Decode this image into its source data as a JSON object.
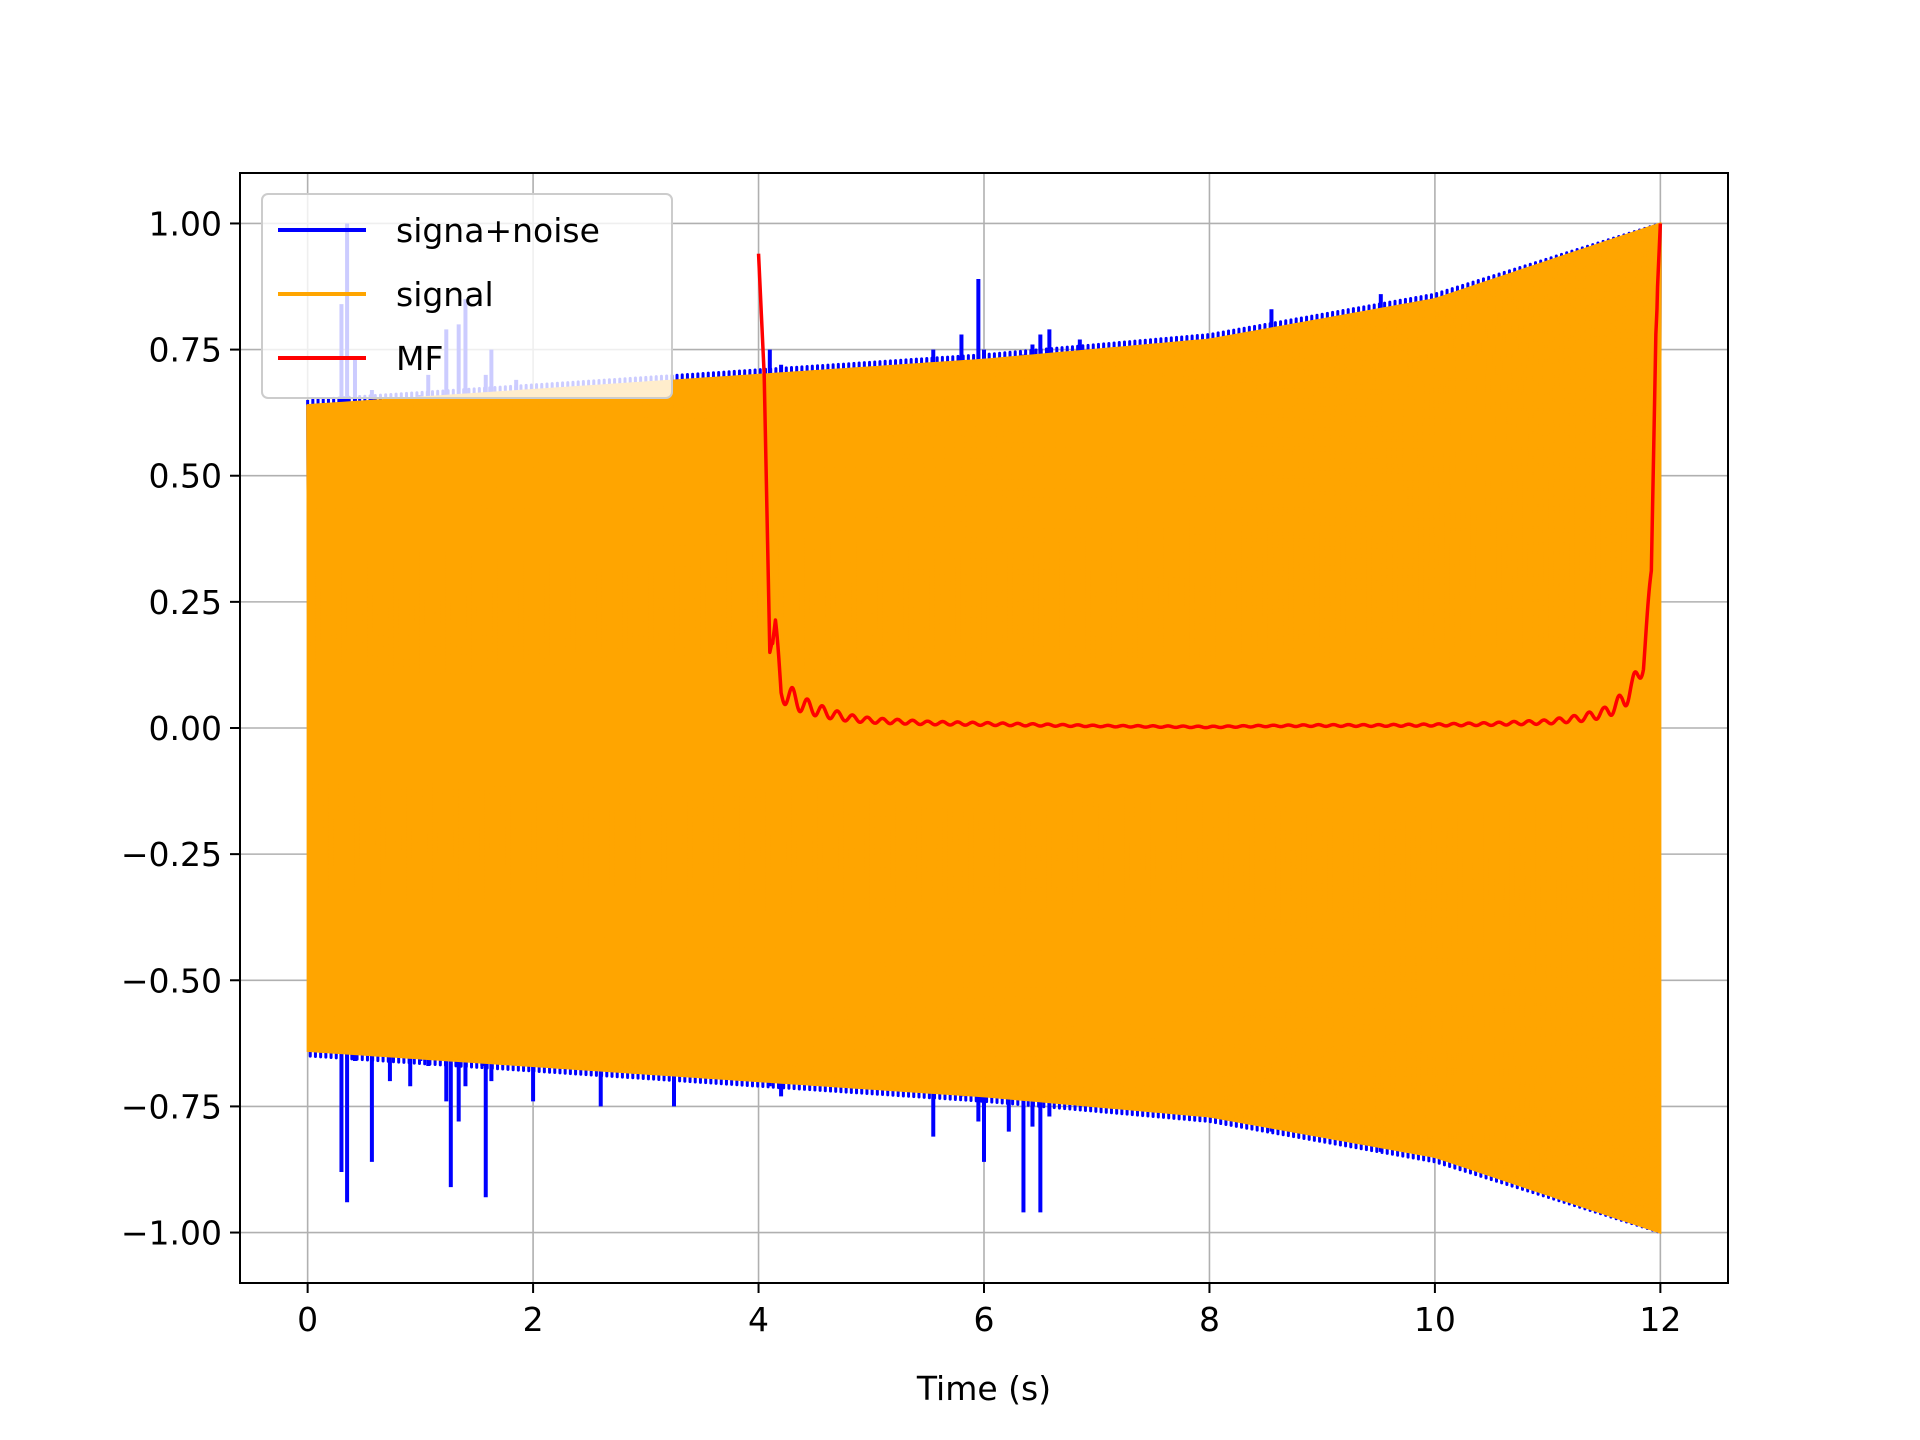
{
  "chart_data": {
    "type": "line",
    "title": "",
    "xlabel": "Time (s)",
    "ylabel": "",
    "xlim": [
      -0.6,
      12.6
    ],
    "ylim": [
      -1.1,
      1.1
    ],
    "xticks": [
      0,
      2,
      4,
      6,
      8,
      10,
      12
    ],
    "xtick_labels": [
      "0",
      "2",
      "4",
      "6",
      "8",
      "10",
      "12"
    ],
    "yticks": [
      1.0,
      0.75,
      0.5,
      0.25,
      0.0,
      -0.25,
      -0.5,
      -0.75,
      -1.0
    ],
    "ytick_labels": [
      "1.00",
      "0.75",
      "0.50",
      "0.25",
      "0.00",
      "−0.25",
      "−0.50",
      "−0.75",
      "−1.00"
    ],
    "grid": true,
    "legend_position": "upper-left",
    "series": [
      {
        "name": "signa+noise",
        "color": "#0000ff",
        "kind": "oscillating",
        "x_range": [
          0,
          12
        ],
        "envelope": {
          "x": [
            0,
            2,
            4,
            6,
            8,
            10,
            12
          ],
          "amp": [
            0.65,
            0.68,
            0.71,
            0.74,
            0.78,
            0.86,
            1.0
          ]
        },
        "spikes": [
          {
            "x": 0.3,
            "min": -0.88,
            "max": 0.84
          },
          {
            "x": 0.35,
            "min": -0.94,
            "max": 1.0
          },
          {
            "x": 0.42,
            "min": -0.66,
            "max": 0.73
          },
          {
            "x": 0.57,
            "min": -0.86,
            "max": 0.67
          },
          {
            "x": 0.73,
            "min": -0.7,
            "max": 0.65
          },
          {
            "x": 0.91,
            "min": -0.71,
            "max": 0.65
          },
          {
            "x": 1.0,
            "min": -0.66,
            "max": 0.66
          },
          {
            "x": 1.07,
            "min": -0.67,
            "max": 0.7
          },
          {
            "x": 1.23,
            "min": -0.74,
            "max": 0.79
          },
          {
            "x": 1.27,
            "min": -0.91,
            "max": 0.66
          },
          {
            "x": 1.34,
            "min": -0.78,
            "max": 0.8
          },
          {
            "x": 1.4,
            "min": -0.71,
            "max": 0.85
          },
          {
            "x": 1.55,
            "min": -0.67,
            "max": 0.66
          },
          {
            "x": 1.58,
            "min": -0.93,
            "max": 0.7
          },
          {
            "x": 1.63,
            "min": -0.7,
            "max": 0.75
          },
          {
            "x": 1.85,
            "min": -0.66,
            "max": 0.69
          },
          {
            "x": 2.0,
            "min": -0.74,
            "max": 0.66
          },
          {
            "x": 2.6,
            "min": -0.75,
            "max": 0.67
          },
          {
            "x": 3.25,
            "min": -0.75,
            "max": 0.68
          },
          {
            "x": 4.1,
            "min": -0.71,
            "max": 0.75
          },
          {
            "x": 4.2,
            "min": -0.73,
            "max": 0.72
          },
          {
            "x": 5.55,
            "min": -0.81,
            "max": 0.75
          },
          {
            "x": 5.8,
            "min": -0.73,
            "max": 0.78
          },
          {
            "x": 5.95,
            "min": -0.78,
            "max": 0.89
          },
          {
            "x": 6.0,
            "min": -0.86,
            "max": 0.75
          },
          {
            "x": 6.22,
            "min": -0.8,
            "max": 0.72
          },
          {
            "x": 6.35,
            "min": -0.96,
            "max": 0.74
          },
          {
            "x": 6.43,
            "min": -0.79,
            "max": 0.76
          },
          {
            "x": 6.5,
            "min": -0.96,
            "max": 0.78
          },
          {
            "x": 6.58,
            "min": -0.77,
            "max": 0.79
          },
          {
            "x": 6.85,
            "min": -0.74,
            "max": 0.77
          },
          {
            "x": 8.55,
            "min": -0.8,
            "max": 0.83
          },
          {
            "x": 9.52,
            "min": -0.84,
            "max": 0.86
          }
        ]
      },
      {
        "name": "signal",
        "color": "#ffa500",
        "kind": "oscillating",
        "x_range": [
          0,
          12
        ],
        "envelope": {
          "x": [
            0,
            2,
            4,
            6,
            8,
            10,
            12
          ],
          "amp": [
            0.64,
            0.67,
            0.7,
            0.73,
            0.77,
            0.85,
            1.0
          ]
        }
      },
      {
        "name": "MF",
        "color": "#ff0000",
        "kind": "line",
        "x": [
          4.0,
          4.05,
          4.1,
          4.15,
          4.2,
          4.3,
          4.4,
          4.6,
          4.8,
          5.0,
          5.5,
          6.0,
          6.5,
          7.0,
          7.5,
          8.0,
          8.5,
          9.0,
          9.5,
          10.0,
          10.5,
          11.0,
          11.3,
          11.5,
          11.65,
          11.75,
          11.85,
          11.92,
          11.96,
          12.0
        ],
        "y": [
          0.94,
          0.7,
          0.15,
          0.2,
          0.07,
          0.06,
          0.045,
          0.03,
          0.02,
          0.015,
          0.01,
          0.008,
          0.006,
          0.004,
          0.003,
          0.002,
          0.004,
          0.005,
          0.005,
          0.006,
          0.008,
          0.012,
          0.02,
          0.03,
          0.05,
          0.08,
          0.13,
          0.3,
          0.8,
          1.0
        ],
        "ripple": true
      }
    ]
  }
}
